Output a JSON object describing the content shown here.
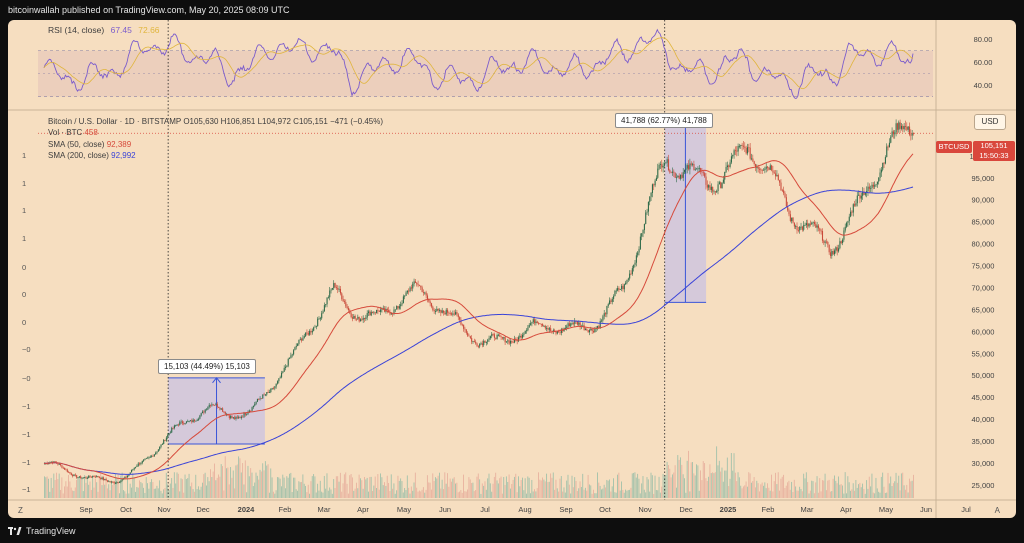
{
  "header": {
    "published_text": "bitcoinwallah published on TradingView.com, May 20, 2025 08:09 UTC"
  },
  "footer": {
    "brand": "TradingView"
  },
  "rsi": {
    "label": "RSI (14, close)",
    "value1": "67.45",
    "value2": "72.66",
    "levels": [
      "80.00",
      "60.00",
      "40.00"
    ]
  },
  "legend": {
    "symbol_line": "Bitcoin / U.S. Dollar · 1D · BITSTAMP",
    "ohlc": "O105,630 H106,851 L104,972 C105,151 −471 (−0.45%)",
    "vol_label": "Vol · BTC",
    "vol_value": "458",
    "sma50_label": "SMA (50, close)",
    "sma50_value": "92,389",
    "sma200_label": "SMA (200, close)",
    "sma200_value": "92,992"
  },
  "currency_button": "USD",
  "price_tag": {
    "symbol": "BTCUSD",
    "price": "105,151",
    "countdown": "15:50:33"
  },
  "callouts": {
    "first": "15,103 (44.49%) 15,103",
    "second": "41,788 (62.77%) 41,788"
  },
  "left_axis_ticks": [
    "1",
    "1",
    "1",
    "1",
    "0",
    "0",
    "0",
    "−0",
    "−0",
    "−1",
    "−1",
    "−1",
    "−1"
  ],
  "controls": {
    "z": "Z",
    "a": "A"
  },
  "colors": {
    "background": "#f6dec0",
    "sma50": "#d64a3b",
    "sma200": "#3a43d8",
    "rsi": "#7b5ccc",
    "up": "#2f6b4a",
    "down": "#c94a3a"
  },
  "chart_data": {
    "type": "candlestick",
    "symbol": "Bitcoin / U.S. Dollar",
    "timeframe": "1D",
    "exchange": "BITSTAMP",
    "x_ticks": [
      "Sep",
      "Oct",
      "Nov",
      "Dec",
      "2024",
      "Feb",
      "Mar",
      "Apr",
      "May",
      "Jun",
      "Jul",
      "Aug",
      "Sep",
      "Oct",
      "Nov",
      "Dec",
      "2025",
      "Feb",
      "Mar",
      "Apr",
      "May",
      "Jun",
      "Jul"
    ],
    "y_ticks": [
      "105,000",
      "100,000",
      "95,000",
      "90,000",
      "85,000",
      "80,000",
      "75,000",
      "70,000",
      "65,000",
      "60,000",
      "55,000",
      "50,000",
      "45,000",
      "40,000",
      "35,000",
      "30,000",
      "25,000"
    ],
    "ylim": [
      22000,
      110000
    ],
    "price_path": [
      [
        "Aug 2023",
        29000
      ],
      [
        "Sep 2023",
        26500
      ],
      [
        "Oct 2023",
        27500
      ],
      [
        "Nov 2023",
        35000
      ],
      [
        "Dec 2023",
        43000
      ],
      [
        "Jan 2024",
        42500
      ],
      [
        "Feb 2024",
        52000
      ],
      [
        "Mar 2024",
        70000
      ],
      [
        "Apr 2024",
        64000
      ],
      [
        "May 2024",
        67000
      ],
      [
        "Jun 2024",
        63000
      ],
      [
        "Jul 2024",
        58000
      ],
      [
        "Aug 2024",
        59000
      ],
      [
        "Sep 2024",
        62000
      ],
      [
        "Oct 2024",
        70000
      ],
      [
        "Nov 2024",
        96000
      ],
      [
        "Dec 2024",
        97000
      ],
      [
        "Jan 2025",
        102000
      ],
      [
        "Feb 2025",
        85000
      ],
      [
        "Mar 2025",
        82000
      ],
      [
        "Apr 2025",
        94000
      ],
      [
        "May 2025",
        105151
      ]
    ],
    "sma50_value": 92389,
    "sma200_value": 92992,
    "rsi_value": 67.45,
    "annotations": [
      {
        "text": "15,103 (44.49%) 15,103",
        "from_date": "Nov 2023",
        "to_date": "Jan 2024",
        "low": 34300,
        "high": 49400
      },
      {
        "text": "41,788 (62.77%) 41,788",
        "from_date": "Nov 2024",
        "to_date": "Dec 2024",
        "low": 66600,
        "high": 108400
      }
    ]
  }
}
